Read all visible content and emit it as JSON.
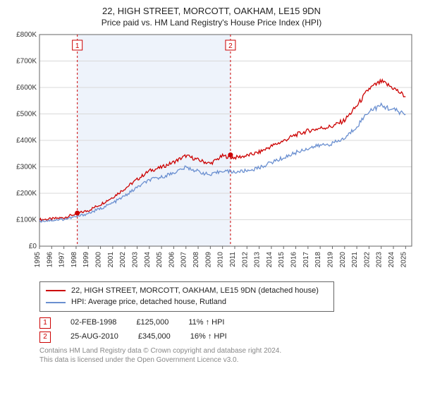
{
  "title": "22, HIGH STREET, MORCOTT, OAKHAM, LE15 9DN",
  "subtitle": "Price paid vs. HM Land Registry's House Price Index (HPI)",
  "chart": {
    "type": "line",
    "background_color": "#ffffff",
    "grid_color": "#d9d9d9",
    "axis_color": "#666666",
    "axis_label_color": "#333333",
    "shaded_band": {
      "x_start": 1998.1,
      "x_end": 2010.65,
      "fill": "#eef3fb"
    },
    "xlim": [
      1995,
      2025.5
    ],
    "ylim": [
      0,
      800000
    ],
    "ytick_step": 100000,
    "ytick_labels": [
      "£0",
      "£100K",
      "£200K",
      "£300K",
      "£400K",
      "£500K",
      "£600K",
      "£700K",
      "£800K"
    ],
    "xticks": [
      1995,
      1996,
      1997,
      1998,
      1999,
      2000,
      2001,
      2002,
      2003,
      2004,
      2005,
      2006,
      2007,
      2008,
      2009,
      2010,
      2011,
      2012,
      2013,
      2014,
      2015,
      2016,
      2017,
      2018,
      2019,
      2020,
      2021,
      2022,
      2023,
      2024,
      2025
    ],
    "tick_fontsize": 10,
    "tick_rotation_x": -90,
    "series": [
      {
        "name": "property",
        "label": "22, HIGH STREET, MORCOTT, OAKHAM, LE15 9DN (detached house)",
        "color": "#cc0000",
        "line_width": 1.3,
        "data_by_year": {
          "1995": 100000,
          "1996": 103000,
          "1997": 108000,
          "1998": 122000,
          "1999": 135000,
          "2000": 158000,
          "2001": 185000,
          "2002": 218000,
          "2003": 252000,
          "2004": 285000,
          "2005": 298000,
          "2006": 318000,
          "2007": 342000,
          "2008": 326000,
          "2009": 312000,
          "2010": 341000,
          "2011": 335000,
          "2012": 342000,
          "2013": 355000,
          "2014": 378000,
          "2015": 398000,
          "2016": 421000,
          "2017": 436000,
          "2018": 446000,
          "2019": 453000,
          "2020": 476000,
          "2021": 530000,
          "2022": 595000,
          "2023": 622000,
          "2024": 598000,
          "2025": 565000
        }
      },
      {
        "name": "hpi",
        "label": "HPI: Average price, detached house, Rutland",
        "color": "#6a8fd0",
        "line_width": 1.3,
        "data_by_year": {
          "1995": 95000,
          "1996": 98000,
          "1997": 102000,
          "1998": 111000,
          "1999": 124000,
          "2000": 142000,
          "2001": 163000,
          "2002": 190000,
          "2003": 222000,
          "2004": 250000,
          "2005": 261000,
          "2006": 278000,
          "2007": 298000,
          "2008": 283000,
          "2009": 268000,
          "2010": 286000,
          "2011": 280000,
          "2012": 285000,
          "2013": 296000,
          "2014": 317000,
          "2015": 334000,
          "2016": 354000,
          "2017": 370000,
          "2018": 381000,
          "2019": 388000,
          "2020": 407000,
          "2021": 453000,
          "2022": 512000,
          "2023": 531000,
          "2024": 516000,
          "2025": 498000
        }
      }
    ],
    "event_lines": [
      {
        "id": "1",
        "x": 1998.1,
        "color": "#cc0000",
        "dash": "3,3"
      },
      {
        "id": "2",
        "x": 2010.65,
        "color": "#cc0000",
        "dash": "3,3"
      }
    ],
    "property_markers": [
      {
        "year": 1998.1,
        "value": 125000,
        "color": "#cc0000"
      },
      {
        "year": 2010.65,
        "value": 345000,
        "color": "#cc0000"
      }
    ],
    "noise_amp": 8000
  },
  "legend": {
    "items": [
      {
        "color": "#cc0000",
        "label": "22, HIGH STREET, MORCOTT, OAKHAM, LE15 9DN (detached house)"
      },
      {
        "color": "#6a8fd0",
        "label": "HPI: Average price, detached house, Rutland"
      }
    ]
  },
  "events": [
    {
      "marker": "1",
      "date": "02-FEB-1998",
      "price": "£125,000",
      "delta": "11% ↑ HPI"
    },
    {
      "marker": "2",
      "date": "25-AUG-2010",
      "price": "£345,000",
      "delta": "16% ↑ HPI"
    }
  ],
  "footer": {
    "line1": "Contains HM Land Registry data © Crown copyright and database right 2024.",
    "line2": "This data is licensed under the Open Government Licence v3.0."
  }
}
